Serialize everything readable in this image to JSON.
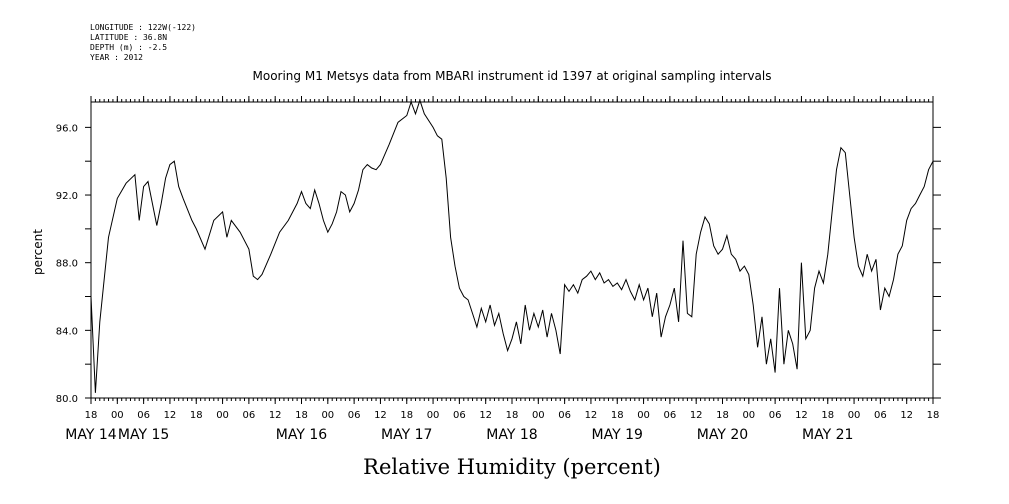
{
  "header": {
    "meta_lines": [
      "LONGITUDE : 122W(-122)",
      "LATITUDE : 36.8N",
      "DEPTH (m) : -2.5",
      "YEAR : 2012"
    ],
    "title": "Mooring M1 Metsys data from MBARI instrument id 1397 at original sampling intervals"
  },
  "chart_data": {
    "type": "line",
    "title": "Mooring M1 Metsys data from MBARI instrument id 1397 at original sampling intervals",
    "xlabel": "Relative Humidity (percent)",
    "ylabel": "percent",
    "ylim": [
      80,
      97.5
    ],
    "yticks": [
      80.0,
      84.0,
      88.0,
      92.0,
      96.0
    ],
    "ytick_labels": [
      "80.0",
      "84.0",
      "88.0",
      "92.0",
      "96.0"
    ],
    "xlim": [
      "2012-05-13T18:00",
      "2012-05-21T18:00"
    ],
    "xticks": [
      {
        "t": "2012-05-13T18:00",
        "label": "18"
      },
      {
        "t": "2012-05-14T00:00",
        "label": "00"
      },
      {
        "t": "2012-05-14T06:00",
        "label": "06"
      },
      {
        "t": "2012-05-14T12:00",
        "label": "12"
      },
      {
        "t": "2012-05-14T18:00",
        "label": "18"
      },
      {
        "t": "2012-05-15T00:00",
        "label": "00"
      },
      {
        "t": "2012-05-15T06:00",
        "label": "06"
      },
      {
        "t": "2012-05-15T12:00",
        "label": "12"
      },
      {
        "t": "2012-05-15T18:00",
        "label": "18"
      },
      {
        "t": "2012-05-16T00:00",
        "label": "00"
      },
      {
        "t": "2012-05-16T06:00",
        "label": "06"
      },
      {
        "t": "2012-05-16T12:00",
        "label": "12"
      },
      {
        "t": "2012-05-16T18:00",
        "label": "18"
      },
      {
        "t": "2012-05-17T00:00",
        "label": "00"
      },
      {
        "t": "2012-05-17T06:00",
        "label": "06"
      },
      {
        "t": "2012-05-17T12:00",
        "label": "12"
      },
      {
        "t": "2012-05-17T18:00",
        "label": "18"
      },
      {
        "t": "2012-05-18T00:00",
        "label": "00"
      },
      {
        "t": "2012-05-18T06:00",
        "label": "06"
      },
      {
        "t": "2012-05-18T12:00",
        "label": "12"
      },
      {
        "t": "2012-05-18T18:00",
        "label": "18"
      },
      {
        "t": "2012-05-19T00:00",
        "label": "00"
      },
      {
        "t": "2012-05-19T06:00",
        "label": "06"
      },
      {
        "t": "2012-05-19T12:00",
        "label": "12"
      },
      {
        "t": "2012-05-19T18:00",
        "label": "18"
      },
      {
        "t": "2012-05-20T00:00",
        "label": "00"
      },
      {
        "t": "2012-05-20T06:00",
        "label": "06"
      },
      {
        "t": "2012-05-20T12:00",
        "label": "12"
      },
      {
        "t": "2012-05-20T18:00",
        "label": "18"
      },
      {
        "t": "2012-05-21T00:00",
        "label": "00"
      },
      {
        "t": "2012-05-21T06:00",
        "label": "06"
      },
      {
        "t": "2012-05-21T12:00",
        "label": "12"
      },
      {
        "t": "2012-05-21T18:00",
        "label": "18"
      }
    ],
    "date_labels": [
      {
        "t": "2012-05-13T18:00",
        "label": "MAY 14"
      },
      {
        "t": "2012-05-14T06:00",
        "label": "MAY 15"
      },
      {
        "t": "2012-05-15T18:00",
        "label": "MAY 16"
      },
      {
        "t": "2012-05-16T18:00",
        "label": "MAY 17"
      },
      {
        "t": "2012-05-17T18:00",
        "label": "MAY 18"
      },
      {
        "t": "2012-05-18T18:00",
        "label": "MAY 19"
      },
      {
        "t": "2012-05-19T18:00",
        "label": "MAY 20"
      },
      {
        "t": "2012-05-20T18:00",
        "label": "MAY 21"
      }
    ],
    "grid": false,
    "series": [
      {
        "color": "#000000",
        "points": [
          [
            "2012-05-13T18:00",
            86.0
          ],
          [
            "2012-05-13T19:00",
            80.3
          ],
          [
            "2012-05-13T20:00",
            84.5
          ],
          [
            "2012-05-13T22:00",
            89.5
          ],
          [
            "2012-05-14T00:00",
            91.8
          ],
          [
            "2012-05-14T02:00",
            92.7
          ],
          [
            "2012-05-14T04:00",
            93.2
          ],
          [
            "2012-05-14T05:00",
            90.5
          ],
          [
            "2012-05-14T06:00",
            92.5
          ],
          [
            "2012-05-14T07:00",
            92.8
          ],
          [
            "2012-05-14T08:00",
            91.5
          ],
          [
            "2012-05-14T09:00",
            90.2
          ],
          [
            "2012-05-14T10:00",
            91.5
          ],
          [
            "2012-05-14T11:00",
            93.0
          ],
          [
            "2012-05-14T12:00",
            93.8
          ],
          [
            "2012-05-14T13:00",
            94.0
          ],
          [
            "2012-05-14T14:00",
            92.5
          ],
          [
            "2012-05-14T15:00",
            91.8
          ],
          [
            "2012-05-14T17:00",
            90.5
          ],
          [
            "2012-05-14T18:00",
            90.0
          ],
          [
            "2012-05-14T20:00",
            88.8
          ],
          [
            "2012-05-14T22:00",
            90.5
          ],
          [
            "2012-05-15T00:00",
            91.0
          ],
          [
            "2012-05-15T01:00",
            89.5
          ],
          [
            "2012-05-15T02:00",
            90.5
          ],
          [
            "2012-05-15T04:00",
            89.8
          ],
          [
            "2012-05-15T06:00",
            88.8
          ],
          [
            "2012-05-15T07:00",
            87.2
          ],
          [
            "2012-05-15T08:00",
            87.0
          ],
          [
            "2012-05-15T09:00",
            87.3
          ],
          [
            "2012-05-15T11:00",
            88.5
          ],
          [
            "2012-05-15T13:00",
            89.8
          ],
          [
            "2012-05-15T15:00",
            90.5
          ],
          [
            "2012-05-15T17:00",
            91.5
          ],
          [
            "2012-05-15T18:00",
            92.2
          ],
          [
            "2012-05-15T19:00",
            91.5
          ],
          [
            "2012-05-15T20:00",
            91.2
          ],
          [
            "2012-05-15T21:00",
            92.3
          ],
          [
            "2012-05-15T22:00",
            91.5
          ],
          [
            "2012-05-15T23:00",
            90.5
          ],
          [
            "2012-05-16T00:00",
            89.8
          ],
          [
            "2012-05-16T01:00",
            90.3
          ],
          [
            "2012-05-16T02:00",
            91.0
          ],
          [
            "2012-05-16T03:00",
            92.2
          ],
          [
            "2012-05-16T04:00",
            92.0
          ],
          [
            "2012-05-16T05:00",
            91.0
          ],
          [
            "2012-05-16T06:00",
            91.5
          ],
          [
            "2012-05-16T07:00",
            92.3
          ],
          [
            "2012-05-16T08:00",
            93.5
          ],
          [
            "2012-05-16T09:00",
            93.8
          ],
          [
            "2012-05-16T10:00",
            93.6
          ],
          [
            "2012-05-16T11:00",
            93.5
          ],
          [
            "2012-05-16T12:00",
            93.8
          ],
          [
            "2012-05-16T14:00",
            95.0
          ],
          [
            "2012-05-16T16:00",
            96.3
          ],
          [
            "2012-05-16T18:00",
            96.7
          ],
          [
            "2012-05-16T19:00",
            97.5
          ],
          [
            "2012-05-16T20:00",
            96.8
          ],
          [
            "2012-05-16T21:00",
            97.6
          ],
          [
            "2012-05-16T22:00",
            96.8
          ],
          [
            "2012-05-17T00:00",
            96.0
          ],
          [
            "2012-05-17T01:00",
            95.5
          ],
          [
            "2012-05-17T02:00",
            95.3
          ],
          [
            "2012-05-17T03:00",
            93.0
          ],
          [
            "2012-05-17T04:00",
            89.5
          ],
          [
            "2012-05-17T05:00",
            87.8
          ],
          [
            "2012-05-17T06:00",
            86.5
          ],
          [
            "2012-05-17T07:00",
            86.0
          ],
          [
            "2012-05-17T08:00",
            85.8
          ],
          [
            "2012-05-17T09:00",
            85.0
          ],
          [
            "2012-05-17T10:00",
            84.2
          ],
          [
            "2012-05-17T11:00",
            85.3
          ],
          [
            "2012-05-17T12:00",
            84.5
          ],
          [
            "2012-05-17T13:00",
            85.5
          ],
          [
            "2012-05-17T14:00",
            84.3
          ],
          [
            "2012-05-17T15:00",
            85.0
          ],
          [
            "2012-05-17T16:00",
            83.8
          ],
          [
            "2012-05-17T17:00",
            82.8
          ],
          [
            "2012-05-17T18:00",
            83.5
          ],
          [
            "2012-05-17T19:00",
            84.5
          ],
          [
            "2012-05-17T20:00",
            83.2
          ],
          [
            "2012-05-17T21:00",
            85.5
          ],
          [
            "2012-05-17T22:00",
            84.0
          ],
          [
            "2012-05-17T23:00",
            85.0
          ],
          [
            "2012-05-18T00:00",
            84.2
          ],
          [
            "2012-05-18T01:00",
            85.2
          ],
          [
            "2012-05-18T02:00",
            83.6
          ],
          [
            "2012-05-18T03:00",
            85.0
          ],
          [
            "2012-05-18T04:00",
            84.0
          ],
          [
            "2012-05-18T05:00",
            82.6
          ],
          [
            "2012-05-18T06:00",
            86.7
          ],
          [
            "2012-05-18T07:00",
            86.3
          ],
          [
            "2012-05-18T08:00",
            86.7
          ],
          [
            "2012-05-18T09:00",
            86.2
          ],
          [
            "2012-05-18T10:00",
            87.0
          ],
          [
            "2012-05-18T11:00",
            87.2
          ],
          [
            "2012-05-18T12:00",
            87.5
          ],
          [
            "2012-05-18T13:00",
            87.0
          ],
          [
            "2012-05-18T14:00",
            87.4
          ],
          [
            "2012-05-18T15:00",
            86.8
          ],
          [
            "2012-05-18T16:00",
            87.0
          ],
          [
            "2012-05-18T17:00",
            86.6
          ],
          [
            "2012-05-18T18:00",
            86.8
          ],
          [
            "2012-05-18T19:00",
            86.4
          ],
          [
            "2012-05-18T20:00",
            87.0
          ],
          [
            "2012-05-18T21:00",
            86.3
          ],
          [
            "2012-05-18T22:00",
            85.8
          ],
          [
            "2012-05-18T23:00",
            86.7
          ],
          [
            "2012-05-19T00:00",
            85.8
          ],
          [
            "2012-05-19T01:00",
            86.5
          ],
          [
            "2012-05-19T02:00",
            84.8
          ],
          [
            "2012-05-19T03:00",
            86.2
          ],
          [
            "2012-05-19T04:00",
            83.6
          ],
          [
            "2012-05-19T05:00",
            84.8
          ],
          [
            "2012-05-19T06:00",
            85.5
          ],
          [
            "2012-05-19T07:00",
            86.5
          ],
          [
            "2012-05-19T08:00",
            84.5
          ],
          [
            "2012-05-19T09:00",
            89.3
          ],
          [
            "2012-05-19T10:00",
            85.0
          ],
          [
            "2012-05-19T11:00",
            84.8
          ],
          [
            "2012-05-19T12:00",
            88.5
          ],
          [
            "2012-05-19T13:00",
            89.8
          ],
          [
            "2012-05-19T14:00",
            90.7
          ],
          [
            "2012-05-19T15:00",
            90.3
          ],
          [
            "2012-05-19T16:00",
            89.0
          ],
          [
            "2012-05-19T17:00",
            88.5
          ],
          [
            "2012-05-19T18:00",
            88.8
          ],
          [
            "2012-05-19T19:00",
            89.6
          ],
          [
            "2012-05-19T20:00",
            88.5
          ],
          [
            "2012-05-19T21:00",
            88.2
          ],
          [
            "2012-05-19T22:00",
            87.5
          ],
          [
            "2012-05-19T23:00",
            87.8
          ],
          [
            "2012-05-20T00:00",
            87.3
          ],
          [
            "2012-05-20T01:00",
            85.5
          ],
          [
            "2012-05-20T02:00",
            83.0
          ],
          [
            "2012-05-20T03:00",
            84.8
          ],
          [
            "2012-05-20T04:00",
            82.0
          ],
          [
            "2012-05-20T05:00",
            83.5
          ],
          [
            "2012-05-20T06:00",
            81.5
          ],
          [
            "2012-05-20T07:00",
            86.5
          ],
          [
            "2012-05-20T08:00",
            82.0
          ],
          [
            "2012-05-20T09:00",
            84.0
          ],
          [
            "2012-05-20T10:00",
            83.2
          ],
          [
            "2012-05-20T11:00",
            81.7
          ],
          [
            "2012-05-20T12:00",
            88.0
          ],
          [
            "2012-05-20T13:00",
            83.5
          ],
          [
            "2012-05-20T14:00",
            84.0
          ],
          [
            "2012-05-20T15:00",
            86.5
          ],
          [
            "2012-05-20T16:00",
            87.5
          ],
          [
            "2012-05-20T17:00",
            86.8
          ],
          [
            "2012-05-20T18:00",
            88.5
          ],
          [
            "2012-05-20T19:00",
            91.0
          ],
          [
            "2012-05-20T20:00",
            93.5
          ],
          [
            "2012-05-20T21:00",
            94.8
          ],
          [
            "2012-05-20T22:00",
            94.5
          ],
          [
            "2012-05-20T23:00",
            92.0
          ],
          [
            "2012-05-21T00:00",
            89.5
          ],
          [
            "2012-05-21T01:00",
            87.8
          ],
          [
            "2012-05-21T02:00",
            87.2
          ],
          [
            "2012-05-21T03:00",
            88.5
          ],
          [
            "2012-05-21T04:00",
            87.5
          ],
          [
            "2012-05-21T05:00",
            88.2
          ],
          [
            "2012-05-21T06:00",
            85.2
          ],
          [
            "2012-05-21T07:00",
            86.5
          ],
          [
            "2012-05-21T08:00",
            86.0
          ],
          [
            "2012-05-21T09:00",
            87.0
          ],
          [
            "2012-05-21T10:00",
            88.5
          ],
          [
            "2012-05-21T11:00",
            89.0
          ],
          [
            "2012-05-21T12:00",
            90.5
          ],
          [
            "2012-05-21T13:00",
            91.2
          ],
          [
            "2012-05-21T14:00",
            91.5
          ],
          [
            "2012-05-21T15:00",
            92.0
          ],
          [
            "2012-05-21T16:00",
            92.5
          ],
          [
            "2012-05-21T17:00",
            93.5
          ],
          [
            "2012-05-21T18:00",
            94.0
          ]
        ]
      }
    ]
  }
}
